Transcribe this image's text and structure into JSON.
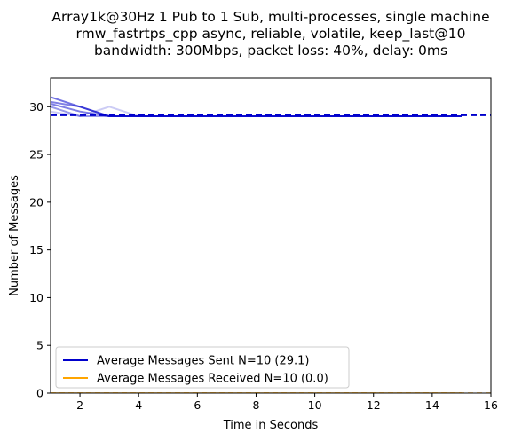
{
  "chart_data": {
    "type": "line",
    "title_lines": [
      "Array1k@30Hz 1 Pub to 1 Sub, multi-processes, single machine",
      "rmw_fastrtps_cpp async, reliable, volatile, keep_last@10",
      "bandwidth: 300Mbps, packet loss: 40%, delay: 0ms"
    ],
    "xlabel": "Time in Seconds",
    "ylabel": "Number of Messages",
    "xlim": [
      1,
      16
    ],
    "ylim": [
      0,
      33
    ],
    "xticks": [
      2,
      4,
      6,
      8,
      10,
      12,
      14,
      16
    ],
    "yticks": [
      0,
      5,
      10,
      15,
      20,
      25,
      30
    ],
    "grid": false,
    "legend_placement": "lower-left",
    "legend": [
      {
        "label": "Average Messages Sent N=10 (29.1)",
        "color": "#0000cc"
      },
      {
        "label": "Average Messages Received N=10 (0.0)",
        "color": "#ffa500"
      }
    ],
    "sent_average": 29.1,
    "received_average": 0.0,
    "sent_runs": [
      {
        "color": "#0000cc",
        "opacity": 0.55,
        "x": [
          1,
          2,
          3,
          4,
          5,
          6,
          7,
          8,
          9,
          10,
          11,
          12,
          13,
          14,
          15
        ],
        "y": [
          31,
          30,
          29,
          29,
          29,
          29,
          29,
          29,
          29,
          29,
          29,
          29,
          29,
          29,
          29
        ]
      },
      {
        "color": "#0000cc",
        "opacity": 0.5,
        "x": [
          1,
          2,
          3,
          4,
          5,
          6,
          7,
          8,
          9,
          10,
          11,
          12,
          13,
          14,
          15
        ],
        "y": [
          30.5,
          30,
          29,
          29,
          29,
          29,
          29,
          29,
          29,
          29,
          29,
          29,
          29,
          29,
          29
        ]
      },
      {
        "color": "#0000cc",
        "opacity": 0.5,
        "x": [
          1,
          2,
          3,
          4,
          5,
          6,
          7,
          8,
          9,
          10,
          11,
          12,
          13,
          14,
          15
        ],
        "y": [
          30.3,
          29.5,
          29,
          29,
          29,
          29,
          29,
          29,
          29,
          29,
          29,
          29,
          29,
          29,
          29
        ]
      },
      {
        "color": "#0000cc",
        "opacity": 0.4,
        "x": [
          1,
          2,
          3,
          4,
          5,
          6,
          7,
          8,
          9,
          10,
          11,
          12,
          13,
          14,
          15
        ],
        "y": [
          30,
          29,
          29,
          29,
          29,
          29,
          29,
          29,
          29,
          29,
          29,
          29,
          29,
          29,
          29
        ]
      },
      {
        "color": "#0000cc",
        "opacity": 0.2,
        "x": [
          1,
          2,
          3,
          4,
          5,
          6,
          7,
          8,
          9,
          10,
          11,
          12,
          13,
          14,
          15
        ],
        "y": [
          29.5,
          29,
          30,
          29,
          29,
          29,
          29,
          29,
          29,
          29,
          29,
          29,
          29,
          29,
          29
        ]
      }
    ],
    "received_runs": [
      {
        "color": "#ffa500",
        "x": [
          1,
          2,
          3,
          4,
          5,
          6,
          7,
          8,
          9,
          10,
          11,
          12,
          13,
          14,
          15
        ],
        "y": [
          0,
          0,
          0,
          0,
          0,
          0,
          0,
          0,
          0,
          0,
          0,
          0,
          0,
          0,
          0
        ]
      }
    ]
  }
}
